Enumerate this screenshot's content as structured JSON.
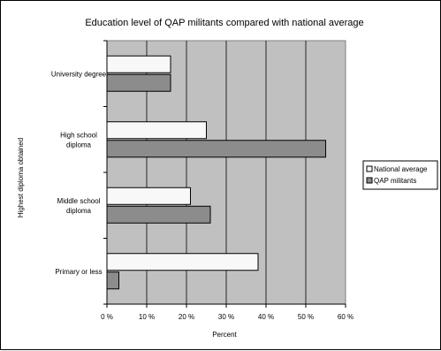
{
  "chart_data": {
    "type": "bar",
    "orientation": "horizontal",
    "title": "Education level of QAP militants compared with national average",
    "xlabel": "Percent",
    "ylabel": "Highest diploma obtained",
    "xlim": [
      0,
      60
    ],
    "x_ticks": [
      "0 %",
      "10 %",
      "20 %",
      "30 %",
      "40 %",
      "50 %",
      "60 %"
    ],
    "x_tick_values": [
      0,
      10,
      20,
      30,
      40,
      50,
      60
    ],
    "grid": "vertical",
    "plot_background": "#c0c0c0",
    "categories": [
      [
        "University degree"
      ],
      [
        "High school",
        "diploma"
      ],
      [
        "Middle school",
        "diploma"
      ],
      [
        "Primary or less"
      ]
    ],
    "series": [
      {
        "name": "National average",
        "color": "#f8f8f8",
        "values": [
          16,
          25,
          21,
          38
        ]
      },
      {
        "name": "QAP militants",
        "color": "#8c8c8c",
        "values": [
          16,
          55,
          26,
          3
        ]
      }
    ],
    "legend_position": "right"
  }
}
